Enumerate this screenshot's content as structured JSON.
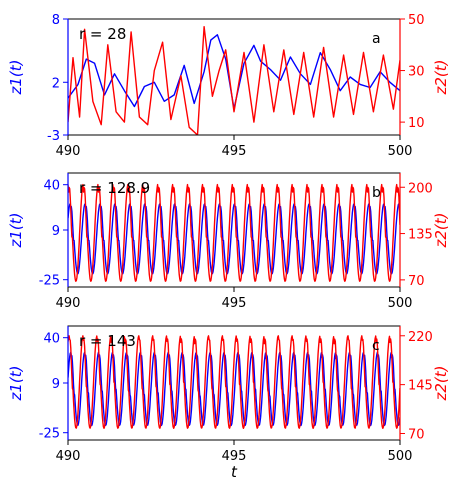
{
  "chart_data": [
    {
      "type": "line",
      "panel_label": "a",
      "annotation": "r = 28",
      "xlabel": "",
      "ylabel_left": "z1(t)",
      "ylabel_right": "z2(t)",
      "xlim": [
        490,
        500
      ],
      "ylim_left": [
        -3,
        8
      ],
      "ylim_right": [
        5,
        50
      ],
      "xticks": [
        490,
        495,
        500
      ],
      "yticks_left": [
        -3,
        2,
        8
      ],
      "yticks_right": [
        10,
        30,
        50
      ],
      "series": [
        {
          "name": "z1(t)",
          "axis": "left",
          "color": "#0000ff",
          "x": [
            490,
            490.3,
            490.55,
            490.8,
            491.1,
            491.4,
            491.7,
            492.0,
            492.3,
            492.6,
            492.9,
            493.2,
            493.5,
            493.8,
            494.1,
            494.3,
            494.5,
            494.75,
            495.0,
            495.3,
            495.6,
            495.8,
            496.1,
            496.4,
            496.7,
            497.0,
            497.3,
            497.6,
            497.9,
            498.2,
            498.5,
            498.8,
            499.1,
            499.4,
            499.7,
            500
          ],
          "values": [
            0.5,
            1.8,
            4.2,
            3.8,
            0.8,
            2.8,
            1.2,
            -0.3,
            1.6,
            2.0,
            0.2,
            0.8,
            3.6,
            0.0,
            3.0,
            6.0,
            6.5,
            4.2,
            -0.5,
            3.8,
            5.5,
            4.0,
            3.2,
            2.2,
            4.4,
            2.8,
            1.8,
            4.8,
            3.2,
            1.2,
            2.5,
            1.8,
            1.5,
            3.0,
            2.0,
            1.2
          ]
        },
        {
          "name": "z2(t)",
          "axis": "right",
          "color": "#ff0000",
          "x": [
            490,
            490.15,
            490.35,
            490.5,
            490.75,
            491.0,
            491.2,
            491.45,
            491.7,
            491.9,
            492.15,
            492.4,
            492.6,
            492.85,
            493.1,
            493.4,
            493.65,
            493.9,
            494.1,
            494.35,
            494.55,
            494.75,
            495.0,
            495.3,
            495.6,
            495.9,
            496.2,
            496.5,
            496.8,
            497.1,
            497.4,
            497.7,
            498.0,
            498.3,
            498.6,
            498.9,
            499.2,
            499.5,
            499.8,
            500
          ],
          "values": [
            10,
            35,
            12,
            46,
            18,
            9,
            40,
            14,
            10,
            45,
            12,
            9,
            30,
            41,
            11,
            28,
            8,
            5,
            47,
            20,
            30,
            38,
            14,
            37,
            10,
            40,
            14,
            38,
            13,
            37,
            12,
            39,
            12,
            36,
            13,
            37,
            14,
            36,
            15,
            34
          ]
        }
      ]
    },
    {
      "type": "line",
      "panel_label": "b",
      "annotation": "r = 128.9",
      "xlabel": "",
      "ylabel_left": "z1(t)",
      "ylabel_right": "z2(t)",
      "xlim": [
        490,
        500
      ],
      "ylim_left": [
        -30,
        48
      ],
      "ylim_right": [
        60,
        220
      ],
      "xticks": [
        490,
        495,
        500
      ],
      "yticks_left": [
        -25,
        9,
        40
      ],
      "yticks_right": [
        70,
        135,
        200
      ],
      "series": [
        {
          "name": "z1(t)",
          "axis": "left",
          "color": "#0000ff",
          "period": 0.45,
          "phase": 0.1,
          "min": -21,
          "max": 27
        },
        {
          "name": "z2(t)",
          "axis": "right",
          "color": "#ff0000",
          "period": 0.45,
          "phase": 0.22,
          "min": 68,
          "max": 205
        }
      ]
    },
    {
      "type": "line",
      "panel_label": "c",
      "annotation": "r = 143",
      "xlabel": "t",
      "ylabel_left": "z1(t)",
      "ylabel_right": "z2(t)",
      "xlim": [
        490,
        500
      ],
      "ylim_left": [
        -30,
        48
      ],
      "ylim_right": [
        60,
        235
      ],
      "xticks": [
        490,
        495,
        500
      ],
      "yticks_left": [
        -25,
        9,
        40
      ],
      "yticks_right": [
        70,
        145,
        220
      ],
      "series": [
        {
          "name": "z1(t)",
          "axis": "left",
          "color": "#0000ff",
          "period": 0.42,
          "phase": 0.05,
          "min": -20,
          "max": 30
        },
        {
          "name": "z2(t)",
          "axis": "right",
          "color": "#ff0000",
          "period": 0.42,
          "phase": 0.17,
          "min": 78,
          "max": 220
        }
      ]
    }
  ]
}
